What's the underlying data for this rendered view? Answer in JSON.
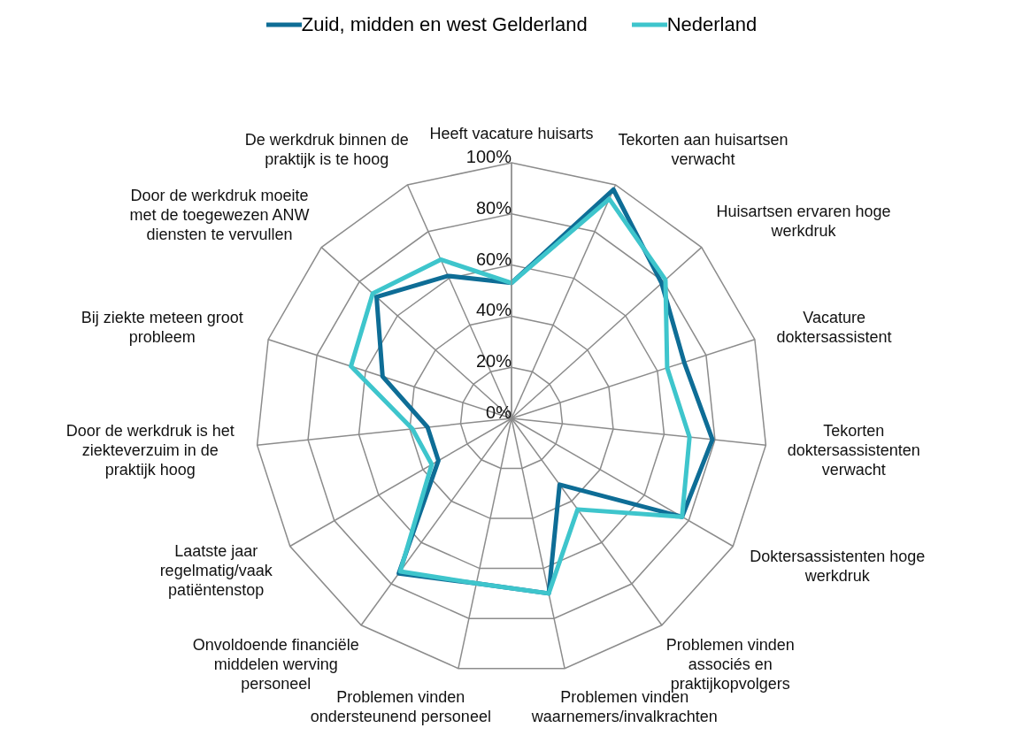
{
  "chart_data": {
    "type": "radar",
    "categories": [
      "Heeft vacature huisarts",
      "Tekorten aan huisartsen verwacht",
      "Huisartsen ervaren hoge werkdruk",
      "Vacature doktersassistent",
      "Tekorten doktersassistenten verwacht",
      "Doktersassistenten hoge werkdruk",
      "Problemen vinden associés en praktijkopvolgers",
      "Problemen vinden waarnemers/invalkrachten",
      "Problemen vinden ondersteunend personeel",
      "Onvoldoende financiële middelen werving personeel",
      "Laatste jaar regelmatig/vaak patiëntenstop",
      "Door de werkdruk is het ziekteverzuim in de praktijk hoog",
      "Bij ziekte meteen groot probleem",
      "Door de werkdruk moeite met de toegewezen ANW diensten te vervullen",
      "De werkdruk binnen de praktijk is te hoog"
    ],
    "series": [
      {
        "name": "Zuid, midden en west Gelderland",
        "color": "#0e6d96",
        "values": [
          53,
          98,
          79,
          71,
          79,
          77,
          32,
          70,
          66,
          75,
          33,
          33,
          53,
          71,
          61
        ]
      },
      {
        "name": "Nederland",
        "color": "#3ec5cc",
        "values": [
          53,
          94,
          81,
          64,
          70,
          77,
          44,
          70,
          66,
          74,
          36,
          39,
          66,
          73,
          68
        ]
      }
    ],
    "ylim": [
      0,
      100
    ],
    "yticks": [
      {
        "value": 0,
        "label": "0%"
      },
      {
        "value": 20,
        "label": "20%"
      },
      {
        "value": 40,
        "label": "40%"
      },
      {
        "value": 60,
        "label": "60%"
      },
      {
        "value": 80,
        "label": "80%"
      },
      {
        "value": 100,
        "label": "100%"
      }
    ],
    "grid": true,
    "legend": "top",
    "marker": "none",
    "line_style": "solid"
  }
}
